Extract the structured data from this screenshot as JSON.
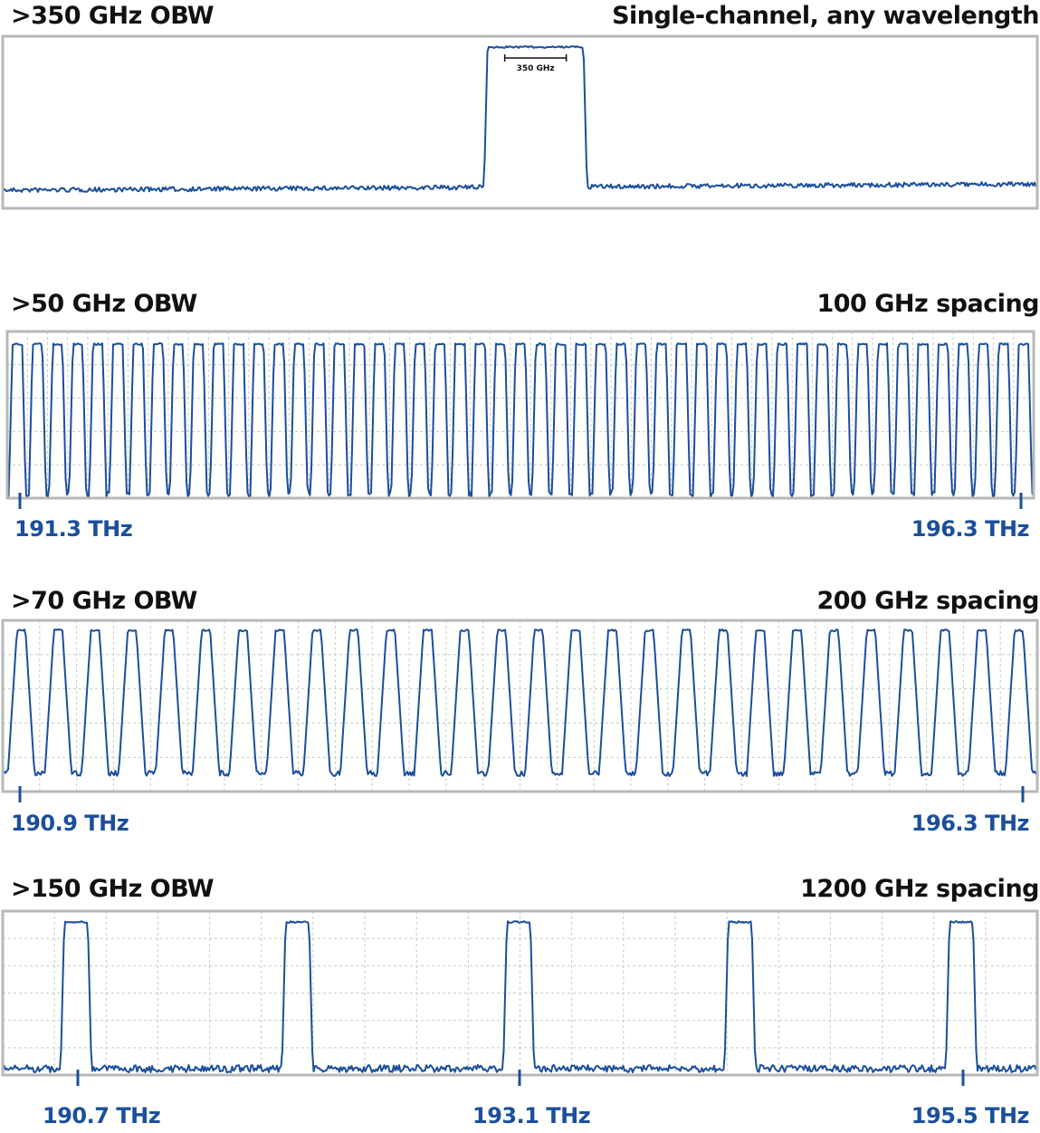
{
  "colors": {
    "trace": "#1b4f9c",
    "frame": "#b8b8b8",
    "grid": "#c9c9c9",
    "title": "#111111"
  },
  "chart_data": [
    {
      "type": "line",
      "title": ">350 GHz OBW",
      "subtitle": "Single-channel, any wavelength",
      "annotation": "350 GHz",
      "grid": false,
      "x_ticks": [],
      "channels": [
        0.515
      ]
    },
    {
      "type": "line",
      "title": ">50 GHz OBW",
      "subtitle": "100 GHz spacing",
      "grid": true,
      "x_ticks": [
        "191.3 THz",
        "196.3 THz"
      ],
      "x_range_thz": [
        191.3,
        196.3
      ],
      "channel_spacing_ghz": 100,
      "channel_count": 51
    },
    {
      "type": "line",
      "title": ">70 GHz OBW",
      "subtitle": "200 GHz spacing",
      "grid": true,
      "x_ticks": [
        "190.9 THz",
        "196.3 THz"
      ],
      "x_range_thz": [
        190.9,
        196.3
      ],
      "channel_spacing_ghz": 200,
      "channel_count": 28
    },
    {
      "type": "line",
      "title": ">150 GHz OBW",
      "subtitle": "1200 GHz spacing",
      "grid": true,
      "x_ticks": [
        "190.7 THz",
        "193.1 THz",
        "195.5 THz"
      ],
      "x_range_thz": [
        190.7,
        195.5
      ],
      "channel_spacing_ghz": 1200,
      "channel_count": 5
    }
  ]
}
